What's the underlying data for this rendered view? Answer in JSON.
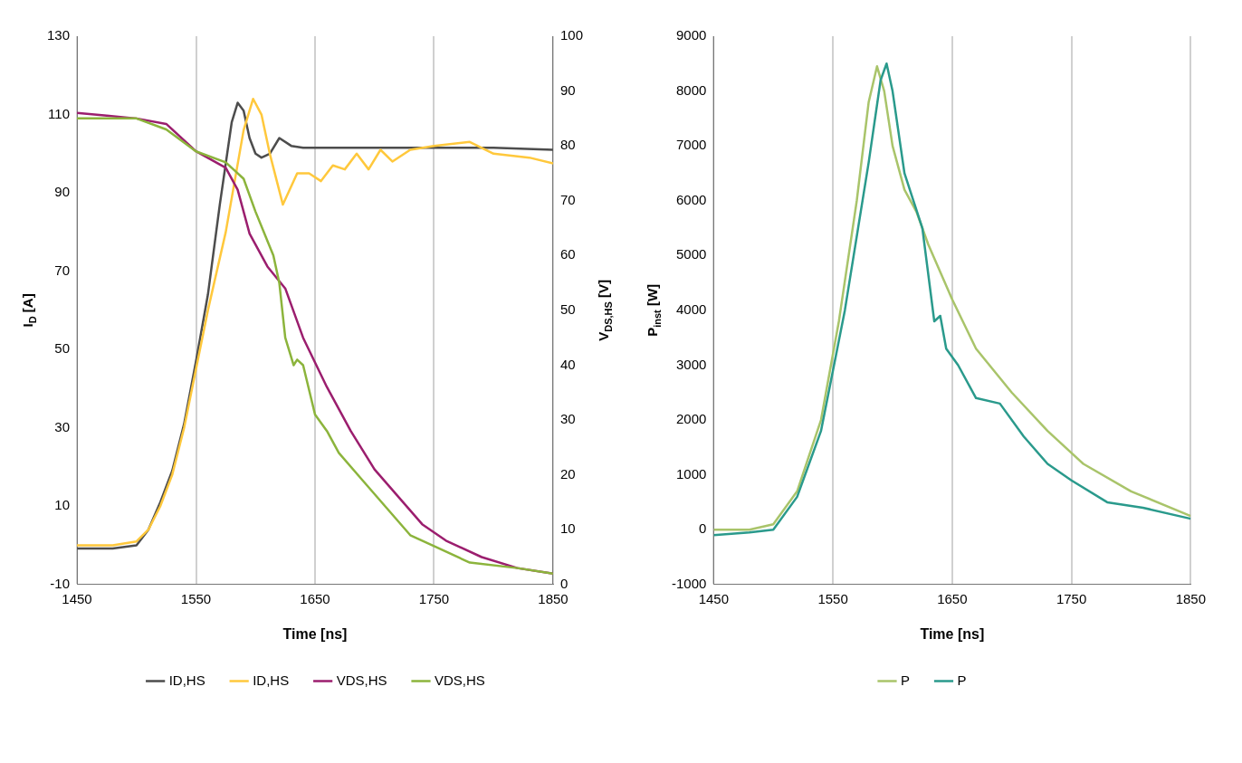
{
  "chart_data": [
    {
      "type": "line",
      "xlabel": "Time [ns]",
      "ylabel": "I$_{D}$ [A]",
      "y2label": "V$_{DS,HS}$ [V]",
      "xlim": [
        1450,
        1850
      ],
      "xticks": [
        1450,
        1550,
        1650,
        1750,
        1850
      ],
      "ylim": [
        -10,
        130
      ],
      "yticks": [
        -10,
        10,
        30,
        50,
        70,
        90,
        110,
        130
      ],
      "y2lim": [
        0,
        100
      ],
      "y2ticks": [
        0,
        10,
        20,
        30,
        40,
        50,
        60,
        70,
        80,
        90,
        100
      ],
      "grid": "x",
      "legend": "bottom",
      "marker": "none",
      "line_style": "solid",
      "series": [
        {
          "name": "ID,HS",
          "color": "#4d4d4d",
          "x": [
            1450,
            1480,
            1500,
            1510,
            1520,
            1530,
            1540,
            1550,
            1560,
            1570,
            1580,
            1585,
            1590,
            1595,
            1600,
            1605,
            1612,
            1620,
            1630,
            1640,
            1660,
            1700,
            1750,
            1800,
            1850
          ],
          "values": [
            -0.8,
            -0.8,
            0,
            4,
            11,
            19,
            31,
            47,
            64,
            87,
            108,
            113,
            111,
            104,
            100,
            99,
            100,
            104,
            102,
            101.5,
            101.5,
            101.5,
            101.5,
            101.5,
            101
          ]
        },
        {
          "name": "ID,HS",
          "color": "#ffc83c",
          "x": [
            1450,
            1480,
            1500,
            1510,
            1520,
            1530,
            1540,
            1550,
            1560,
            1575,
            1590,
            1598,
            1605,
            1612,
            1623,
            1635,
            1645,
            1655,
            1665,
            1675,
            1685,
            1695,
            1705,
            1715,
            1730,
            1750,
            1780,
            1800,
            1830,
            1850
          ],
          "values": [
            0,
            0,
            1,
            4,
            10,
            18,
            30,
            45,
            60,
            80,
            106,
            114,
            110,
            100,
            87,
            95,
            95,
            93,
            97,
            96,
            100,
            96,
            101,
            98,
            101,
            102,
            103,
            100,
            99,
            97.5
          ]
        },
        {
          "name": "VDS,HS",
          "color": "#9b1e6e",
          "axis": "y2",
          "x": [
            1450,
            1475,
            1500,
            1525,
            1550,
            1575,
            1585,
            1595,
            1610,
            1625,
            1640,
            1660,
            1680,
            1700,
            1720,
            1740,
            1760,
            1790,
            1820,
            1850
          ],
          "values": [
            86,
            85.5,
            85,
            84,
            79,
            76,
            72,
            64,
            58,
            54,
            45,
            36,
            28,
            21,
            16,
            11,
            8,
            5,
            3,
            2
          ]
        },
        {
          "name": "VDS,HS",
          "color": "#8cb43c",
          "axis": "y2",
          "x": [
            1450,
            1475,
            1500,
            1525,
            1550,
            1575,
            1590,
            1600,
            1615,
            1620,
            1625,
            1632,
            1635,
            1640,
            1650,
            1660,
            1670,
            1690,
            1710,
            1730,
            1750,
            1780,
            1820,
            1850
          ],
          "values": [
            85,
            85,
            85,
            83,
            79,
            77,
            74,
            68,
            60,
            55,
            45,
            40,
            41,
            40,
            31,
            28,
            24,
            19,
            14,
            9,
            7,
            4,
            3,
            2
          ]
        }
      ]
    },
    {
      "type": "line",
      "xlabel": "Time [ns]",
      "ylabel": "P$_{inst}$ [W]",
      "xlim": [
        1450,
        1850
      ],
      "xticks": [
        1450,
        1550,
        1650,
        1750,
        1850
      ],
      "ylim": [
        -1000,
        9000
      ],
      "yticks": [
        -1000,
        0,
        1000,
        2000,
        3000,
        4000,
        5000,
        6000,
        7000,
        8000,
        9000
      ],
      "grid": "x",
      "legend": "bottom",
      "marker": "none",
      "line_style": "solid",
      "series": [
        {
          "name": "P",
          "color": "#a9c46a",
          "x": [
            1450,
            1480,
            1500,
            1520,
            1540,
            1555,
            1570,
            1580,
            1587,
            1593,
            1600,
            1610,
            1620,
            1630,
            1650,
            1670,
            1700,
            1730,
            1760,
            1800,
            1850
          ],
          "values": [
            0,
            0,
            100,
            700,
            2000,
            3800,
            6000,
            7800,
            8450,
            8000,
            7000,
            6200,
            5800,
            5200,
            4200,
            3300,
            2500,
            1800,
            1200,
            700,
            250
          ]
        },
        {
          "name": "P",
          "color": "#2a9a8c",
          "x": [
            1450,
            1480,
            1500,
            1520,
            1540,
            1560,
            1580,
            1590,
            1595,
            1600,
            1610,
            1625,
            1635,
            1640,
            1645,
            1655,
            1670,
            1690,
            1710,
            1730,
            1750,
            1780,
            1810,
            1850
          ],
          "values": [
            -100,
            -50,
            0,
            600,
            1800,
            4000,
            6700,
            8200,
            8500,
            8000,
            6500,
            5500,
            3800,
            3900,
            3300,
            3000,
            2400,
            2300,
            1700,
            1200,
            900,
            500,
            400,
            200
          ]
        }
      ]
    }
  ]
}
